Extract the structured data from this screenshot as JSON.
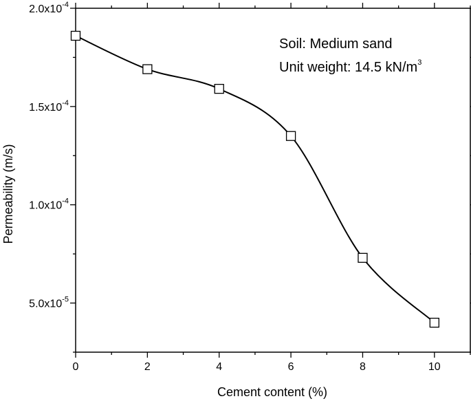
{
  "chart_data": {
    "type": "scatter",
    "xlabel": "Cement content (%)",
    "ylabel": "Permeability (m/s)",
    "xlim": [
      0,
      11
    ],
    "ylim": [
      2.5e-05,
      0.0002
    ],
    "x_ticks": [
      {
        "value": 0,
        "label": "0"
      },
      {
        "value": 2,
        "label": "2"
      },
      {
        "value": 4,
        "label": "4"
      },
      {
        "value": 6,
        "label": "6"
      },
      {
        "value": 8,
        "label": "8"
      },
      {
        "value": 10,
        "label": "10"
      }
    ],
    "y_ticks": [
      {
        "value": 5e-05,
        "mantissa": "5.0x10",
        "exponent": "-5"
      },
      {
        "value": 0.0001,
        "mantissa": "1.0x10",
        "exponent": "-4"
      },
      {
        "value": 0.00015,
        "mantissa": "1.5x10",
        "exponent": "-4"
      },
      {
        "value": 0.0002,
        "mantissa": "2.0x10",
        "exponent": "-4"
      }
    ],
    "series": [
      {
        "marker": "open-square",
        "points": [
          {
            "x": 0,
            "y": 0.000186
          },
          {
            "x": 2,
            "y": 0.000169
          },
          {
            "x": 4,
            "y": 0.000159
          },
          {
            "x": 6,
            "y": 0.000135
          },
          {
            "x": 8,
            "y": 7.3e-05
          },
          {
            "x": 10,
            "y": 4e-05
          }
        ]
      }
    ],
    "fit_curve": "smooth",
    "annotations": {
      "soil": "Soil: Medium sand",
      "unit_weight_prefix": "Unit weight: 14.5 kN/m",
      "unit_weight_exponent": "3"
    },
    "grid": false,
    "legend": "none"
  }
}
